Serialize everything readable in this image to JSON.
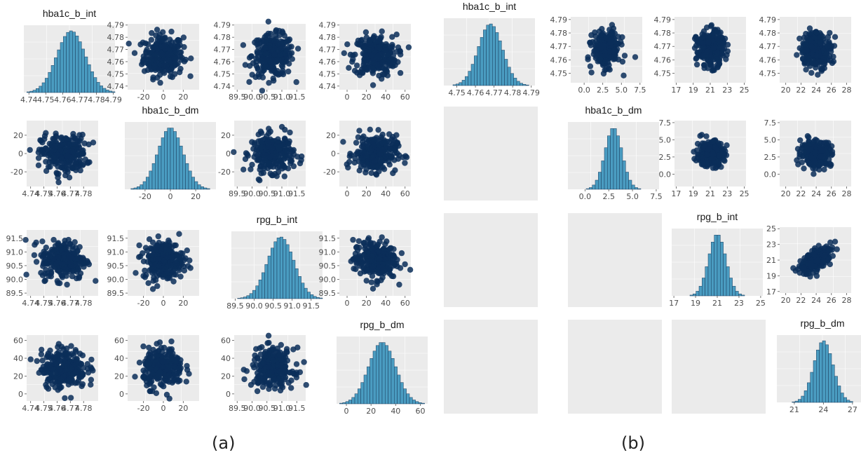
{
  "captions": [
    "(a)",
    "(b)"
  ],
  "chart_data": [
    {
      "panel": "(a)",
      "type": "pairs-matrix",
      "variables": [
        "hba1c_b_int",
        "hba1c_b_dm",
        "rpg_b_int",
        "rpg_b_dm"
      ],
      "variable_summary": [
        {
          "name": "hba1c_b_int",
          "center": 4.765,
          "spread": 0.0085
        },
        {
          "name": "hba1c_b_dm",
          "center": 0,
          "spread": 10
        },
        {
          "name": "rpg_b_int",
          "center": 90.7,
          "spread": 0.35
        },
        {
          "name": "rpg_b_dm",
          "center": 29,
          "spread": 11
        }
      ],
      "axes": [
        {
          "var": "hba1c_b_int",
          "range": [
            4.737,
            4.791
          ],
          "diag_ticks": [
            "4.74",
            "4.75",
            "4.76",
            "4.77",
            "4.78",
            "4.79"
          ],
          "x_ticks": [
            "4.74",
            "4.75",
            "4.76",
            "4.77",
            "4.78"
          ],
          "y_ticks": [
            "4.74",
            "4.75",
            "4.76",
            "4.77",
            "4.78",
            "4.79"
          ]
        },
        {
          "var": "hba1c_b_dm",
          "range": [
            -36,
            36
          ],
          "diag_ticks": [
            "-20",
            "0",
            "20"
          ],
          "x_ticks": [
            "-20",
            "0",
            "20"
          ],
          "y_ticks": [
            "-20",
            "0",
            "20"
          ]
        },
        {
          "var": "rpg_b_int",
          "range": [
            89.4,
            91.8
          ],
          "diag_ticks": [
            "89.5",
            "90.0",
            "90.5",
            "91.0",
            "91.5"
          ],
          "x_ticks": [
            "89.5",
            "90.0",
            "90.5",
            "91.0",
            "91.5"
          ],
          "y_ticks": [
            "89.5",
            "90.0",
            "90.5",
            "91.0",
            "91.5"
          ]
        },
        {
          "var": "rpg_b_dm",
          "range": [
            -8,
            66
          ],
          "diag_ticks": [
            "0",
            "20",
            "40",
            "60"
          ],
          "x_ticks": [
            "0",
            "20",
            "40",
            "60"
          ],
          "y_ticks": [
            "0",
            "20",
            "40",
            "60"
          ]
        }
      ],
      "correlation_upper": [
        [
          0,
          0,
          0,
          0
        ],
        [
          0,
          0,
          0,
          0
        ],
        [
          0,
          0,
          0,
          0
        ],
        [
          0,
          0,
          0,
          0
        ]
      ],
      "lower_triangle": "scatter",
      "upper_triangle": "scatter",
      "diagonal": "histogram"
    },
    {
      "panel": "(b)",
      "type": "pairs-matrix",
      "variables": [
        "hba1c_b_int",
        "hba1c_b_dm",
        "rpg_b_int",
        "rpg_b_dm"
      ],
      "variable_summary": [
        {
          "name": "hba1c_b_int",
          "center": 4.768,
          "spread": 0.0065
        },
        {
          "name": "hba1c_b_dm",
          "center": 3,
          "spread": 0.9
        },
        {
          "name": "rpg_b_int",
          "center": 21,
          "spread": 0.8
        },
        {
          "name": "rpg_b_dm",
          "center": 24,
          "spread": 1.0
        }
      ],
      "axes": [
        {
          "var": "hba1c_b_int",
          "range": [
            4.743,
            4.792
          ],
          "diag_ticks": [
            "4.75",
            "4.76",
            "4.77",
            "4.78",
            "4.79"
          ],
          "x_ticks": [],
          "y_ticks": [
            "4.75",
            "4.76",
            "4.77",
            "4.78",
            "4.79"
          ]
        },
        {
          "var": "hba1c_b_dm",
          "range": [
            -1.8,
            7.8
          ],
          "diag_ticks": [
            "0.0",
            "2.5",
            "5.0",
            "7.5"
          ],
          "x_ticks": [
            "0.0",
            "2.5",
            "5.0",
            "7.5"
          ],
          "y_ticks": [
            "0.0",
            "2.5",
            "5.0",
            "7.5"
          ]
        },
        {
          "var": "rpg_b_int",
          "range": [
            16.8,
            25.2
          ],
          "diag_ticks": [
            "17",
            "19",
            "21",
            "23",
            "25"
          ],
          "x_ticks": [
            "17",
            "19",
            "21",
            "23",
            "25"
          ],
          "y_ticks": [
            "17",
            "19",
            "21",
            "23",
            "25"
          ]
        },
        {
          "var": "rpg_b_dm",
          "range": [
            19.2,
            28.6
          ],
          "diag_ticks": [
            "21",
            "24",
            "27"
          ],
          "x_ticks": [
            "20",
            "22",
            "24",
            "26",
            "28"
          ],
          "y_ticks": []
        }
      ],
      "correlation_upper": [
        [
          0,
          0,
          0,
          0
        ],
        [
          0,
          0,
          0,
          0
        ],
        [
          0,
          0,
          0,
          0.65
        ],
        [
          0,
          0,
          0,
          0
        ]
      ],
      "lower_triangle": "blank",
      "upper_triangle": "scatter",
      "diagonal": "histogram"
    }
  ],
  "colors": {
    "point": "#0b2e59",
    "bar": "#4a9cc1",
    "bar_edge": "#1b3d5e",
    "panel_bg": "#ebebeb",
    "grid": "#ffffff",
    "tick_text": "#4d4d4d",
    "title_text": "#1a1a1a"
  }
}
